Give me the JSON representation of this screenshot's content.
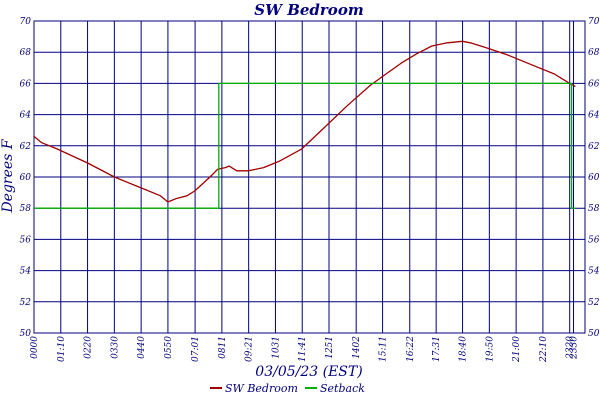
{
  "chart_data": {
    "type": "line",
    "title": "SW Bedroom",
    "xlabel": "03/05/23 (EST)",
    "ylabel": "Degrees F",
    "ylim": [
      50,
      70
    ],
    "yticks": [
      50,
      52,
      54,
      56,
      58,
      60,
      62,
      64,
      66,
      68,
      70
    ],
    "xlim": [
      0,
      1440
    ],
    "x_unit": "minutes since midnight",
    "x_tick_labels": [
      "0000",
      "01:10",
      "0220",
      "0330",
      "0440",
      "0550",
      "07:01",
      "0811",
      "09:21",
      "1031",
      "11:41",
      "1251",
      "1402",
      "15:11",
      "16:22",
      "17:31",
      "18:40",
      "19:50",
      "21:00",
      "22:10",
      "2320",
      "2330"
    ],
    "x_tick_minutes": [
      0,
      70,
      140,
      210,
      280,
      350,
      421,
      491,
      561,
      631,
      701,
      771,
      842,
      911,
      982,
      1051,
      1120,
      1190,
      1260,
      1330,
      1400,
      1410
    ],
    "grid": true,
    "colors": {
      "grid": "#000080",
      "text": "#00007a",
      "temp": "#a00000",
      "setback": "#00b000"
    },
    "legend": {
      "placement": "bottom"
    },
    "series": [
      {
        "name": "SW Bedroom",
        "color": "#a00000",
        "x": [
          0,
          20,
          60,
          140,
          210,
          280,
          330,
          350,
          370,
          400,
          420,
          460,
          480,
          500,
          510,
          530,
          560,
          600,
          640,
          700,
          760,
          820,
          880,
          920,
          960,
          1000,
          1040,
          1080,
          1120,
          1140,
          1180,
          1240,
          1300,
          1360,
          1380,
          1400,
          1415
        ],
        "values": [
          62.6,
          62.2,
          61.8,
          60.9,
          60.0,
          59.3,
          58.8,
          58.4,
          58.6,
          58.8,
          59.1,
          60.0,
          60.5,
          60.6,
          60.7,
          60.4,
          60.4,
          60.6,
          61.0,
          61.8,
          63.2,
          64.6,
          65.9,
          66.6,
          67.3,
          67.9,
          68.4,
          68.6,
          68.7,
          68.6,
          68.3,
          67.8,
          67.2,
          66.6,
          66.3,
          66.0,
          65.8
        ]
      },
      {
        "name": "Setback",
        "color": "#00b000",
        "x": [
          0,
          483,
          483,
          1405,
          1405,
          1415
        ],
        "values": [
          58,
          58,
          66,
          66,
          58,
          58
        ]
      }
    ]
  }
}
